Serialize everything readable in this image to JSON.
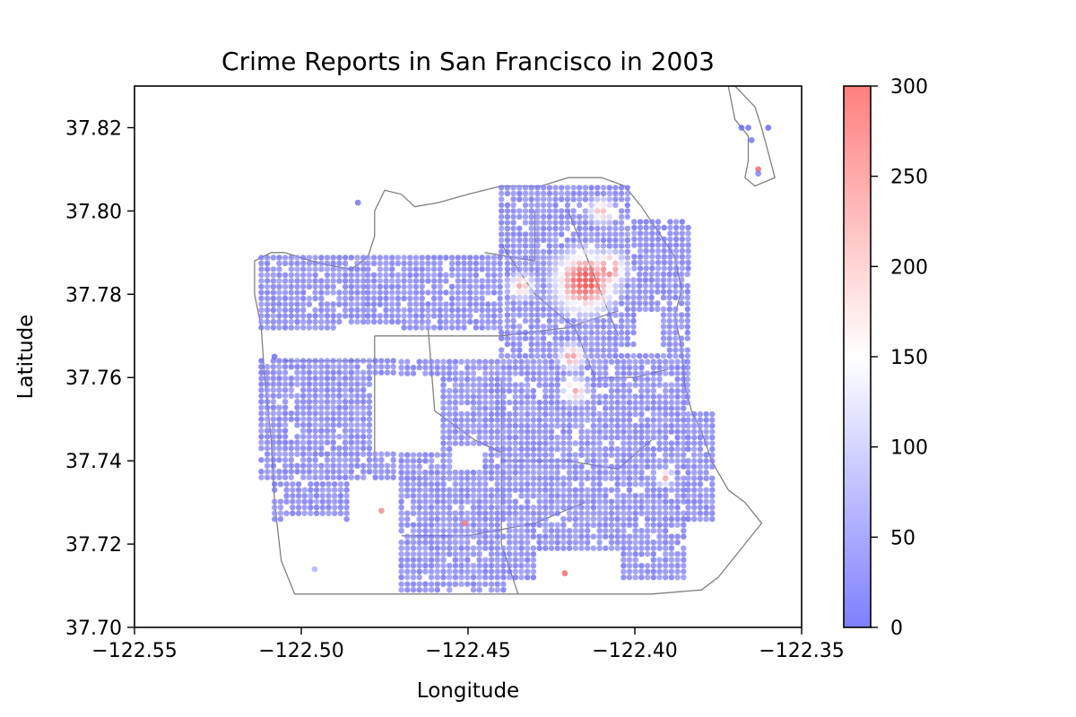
{
  "chart_data": {
    "type": "scatter",
    "title": "Crime Reports in San Francisco in 2003",
    "xlabel": "Longitude",
    "ylabel": "Latitude",
    "xlim": [
      -122.55,
      -122.35
    ],
    "ylim": [
      37.7,
      37.83
    ],
    "x_ticks": [
      -122.55,
      -122.5,
      -122.45,
      -122.4,
      -122.35
    ],
    "x_tick_labels": [
      "−122.55",
      "−122.50",
      "−122.45",
      "−122.40",
      "−122.35"
    ],
    "y_ticks": [
      37.7,
      37.72,
      37.74,
      37.76,
      37.78,
      37.8,
      37.82
    ],
    "y_tick_labels": [
      "37.70",
      "37.72",
      "37.74",
      "37.76",
      "37.78",
      "37.80",
      "37.82"
    ],
    "grid": false,
    "colorbar": {
      "min": 0,
      "max": 300,
      "ticks": [
        0,
        50,
        100,
        150,
        200,
        250,
        300
      ],
      "tick_labels": [
        "0",
        "50",
        "100",
        "150",
        "200",
        "250",
        "300"
      ],
      "colormap": [
        "#7f7fff",
        "#ffffff",
        "#ff7f7f"
      ]
    },
    "colors": {
      "low": "#5a5af0",
      "mid": "#f4f4ff",
      "high": "#f04040",
      "boundary": "#808080"
    },
    "regions": [
      {
        "x": [
          -122.512,
          -122.48
        ],
        "y": [
          37.772,
          37.789
        ]
      },
      {
        "x": [
          -122.48,
          -122.44
        ],
        "y": [
          37.772,
          37.789
        ]
      },
      {
        "x": [
          -122.512,
          -122.472
        ],
        "y": [
          37.736,
          37.764
        ]
      },
      {
        "x": [
          -122.508,
          -122.486
        ],
        "y": [
          37.726,
          37.738
        ]
      },
      {
        "x": [
          -122.47,
          -122.384
        ],
        "y": [
          37.712,
          37.764
        ]
      },
      {
        "x": [
          -122.44,
          -122.384
        ],
        "y": [
          37.754,
          37.786
        ]
      },
      {
        "x": [
          -122.44,
          -122.402
        ],
        "y": [
          37.786,
          37.806
        ]
      },
      {
        "x": [
          -122.47,
          -122.438
        ],
        "y": [
          37.709,
          37.72
        ]
      },
      {
        "x": [
          -122.402,
          -122.383
        ],
        "y": [
          37.768,
          37.798
        ]
      },
      {
        "x": [
          -122.384,
          -122.376
        ],
        "y": [
          37.726,
          37.752
        ]
      }
    ],
    "holes": [
      {
        "x": [
          -122.49,
          -122.47
        ],
        "y": [
          37.764,
          37.772
        ]
      },
      {
        "x": [
          -122.478,
          -122.458
        ],
        "y": [
          37.742,
          37.76
        ]
      },
      {
        "x": [
          -122.505,
          -122.488
        ],
        "y": [
          37.71,
          37.726
        ]
      },
      {
        "x": [
          -122.43,
          -122.405
        ],
        "y": [
          37.712,
          37.718
        ]
      },
      {
        "x": [
          -122.399,
          -122.392
        ],
        "y": [
          37.766,
          37.776
        ]
      },
      {
        "x": [
          -122.455,
          -122.445
        ],
        "y": [
          37.738,
          37.744
        ]
      }
    ],
    "hotspots": [
      {
        "x": -122.415,
        "y": 37.783,
        "r": 0.007,
        "value": 300
      },
      {
        "x": -122.408,
        "y": 37.786,
        "r": 0.004,
        "value": 260
      },
      {
        "x": -122.419,
        "y": 37.765,
        "r": 0.003,
        "value": 230
      },
      {
        "x": -122.418,
        "y": 37.757,
        "r": 0.003,
        "value": 220
      },
      {
        "x": -122.434,
        "y": 37.782,
        "r": 0.003,
        "value": 210
      },
      {
        "x": -122.41,
        "y": 37.8,
        "r": 0.003,
        "value": 200
      },
      {
        "x": -122.391,
        "y": 37.736,
        "r": 0.002,
        "value": 220
      }
    ],
    "outliers": [
      {
        "x": -122.368,
        "y": 37.82,
        "value": 20
      },
      {
        "x": -122.366,
        "y": 37.82,
        "value": 25
      },
      {
        "x": -122.365,
        "y": 37.817,
        "value": 30
      },
      {
        "x": -122.36,
        "y": 37.82,
        "value": 15
      },
      {
        "x": -122.363,
        "y": 37.81,
        "value": 260
      },
      {
        "x": -122.363,
        "y": 37.809,
        "value": 40
      },
      {
        "x": -122.483,
        "y": 37.802,
        "value": 30
      },
      {
        "x": -122.508,
        "y": 37.765,
        "value": 20
      },
      {
        "x": -122.496,
        "y": 37.714,
        "value": 90
      },
      {
        "x": -122.476,
        "y": 37.728,
        "value": 230
      },
      {
        "x": -122.451,
        "y": 37.725,
        "value": 250
      },
      {
        "x": -122.421,
        "y": 37.713,
        "value": 260
      }
    ]
  }
}
